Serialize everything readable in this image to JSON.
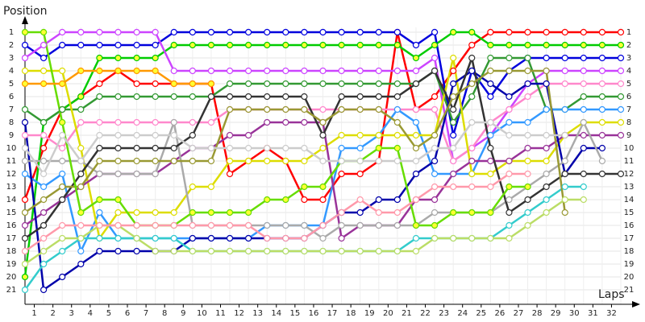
{
  "chart_data": {
    "type": "line",
    "title": "Position",
    "x_label": "Laps",
    "x": [
      0,
      1,
      2,
      3,
      4,
      5,
      6,
      7,
      8,
      9,
      10,
      11,
      12,
      13,
      14,
      15,
      16,
      17,
      18,
      19,
      20,
      21,
      22,
      23,
      24,
      25,
      26,
      27,
      28,
      29,
      30,
      31,
      32
    ],
    "xlim": [
      0,
      32
    ],
    "xticks": [
      1,
      2,
      3,
      4,
      5,
      6,
      7,
      8,
      9,
      10,
      11,
      12,
      13,
      14,
      15,
      16,
      17,
      18,
      19,
      20,
      21,
      22,
      23,
      24,
      25,
      26,
      27,
      28,
      29,
      30,
      31,
      32
    ],
    "ylim": [
      1,
      21
    ],
    "y_reversed": true,
    "yticks": [
      1,
      2,
      3,
      4,
      5,
      6,
      7,
      8,
      9,
      10,
      11,
      12,
      13,
      14,
      15,
      16,
      17,
      18,
      19,
      20,
      21
    ],
    "grid": true,
    "series": [
      {
        "color": "#ff0000",
        "marker_fill": "#ffffff",
        "values": [
          14,
          10,
          7,
          6,
          5,
          4,
          5,
          5,
          5,
          5,
          5,
          12,
          11,
          10,
          11,
          14,
          14,
          12,
          12,
          11,
          1,
          7,
          6,
          4,
          2,
          1,
          1,
          1,
          1,
          1,
          1,
          1,
          1
        ]
      },
      {
        "color": "#00cc00",
        "marker_fill": "#ffff33",
        "values": [
          20,
          8,
          7,
          6,
          3,
          3,
          3,
          3,
          2,
          2,
          2,
          2,
          2,
          2,
          2,
          2,
          2,
          2,
          2,
          2,
          2,
          3,
          2,
          1,
          1,
          2,
          2,
          2,
          2,
          2,
          2,
          2,
          2
        ]
      },
      {
        "color": "#0000dd",
        "marker_fill": "#ffffff",
        "values": [
          2,
          3,
          2,
          2,
          2,
          2,
          2,
          2,
          1,
          1,
          1,
          1,
          1,
          1,
          1,
          1,
          1,
          1,
          1,
          1,
          1,
          2,
          1,
          9,
          4,
          6,
          4,
          3,
          3,
          3,
          3,
          3,
          3
        ]
      },
      {
        "color": "#cc44ff",
        "marker_fill": "#ffffff",
        "values": [
          3,
          2,
          1,
          1,
          1,
          1,
          1,
          1,
          4,
          4,
          4,
          4,
          4,
          4,
          4,
          4,
          4,
          4,
          4,
          4,
          4,
          4,
          3,
          11,
          10,
          9,
          7,
          5,
          4,
          4,
          4,
          4,
          4
        ]
      },
      {
        "color": "#ff88cc",
        "marker_fill": "#ffffff",
        "values": [
          9,
          9,
          10,
          8,
          8,
          8,
          8,
          8,
          8,
          8,
          8,
          7,
          7,
          7,
          7,
          7,
          7,
          7,
          7,
          7,
          7,
          7,
          7,
          11,
          10,
          8,
          7,
          6,
          5,
          5,
          5,
          5,
          5
        ]
      },
      {
        "color": "#339933",
        "marker_fill": "#ffffff",
        "values": [
          7,
          8,
          7,
          7,
          6,
          6,
          6,
          6,
          6,
          6,
          6,
          5,
          5,
          5,
          5,
          5,
          5,
          5,
          5,
          5,
          5,
          5,
          4,
          8,
          6,
          3,
          3,
          3,
          7,
          7,
          6,
          6,
          6
        ]
      },
      {
        "color": "#3399ff",
        "marker_fill": "#ffffff",
        "values": [
          12,
          13,
          12,
          18,
          15,
          17,
          17,
          17,
          17,
          17,
          17,
          17,
          17,
          16,
          16,
          16,
          16,
          10,
          10,
          9,
          7,
          8,
          12,
          12,
          12,
          9,
          8,
          8,
          7,
          7,
          7,
          7,
          7
        ]
      },
      {
        "color": "#dddd00",
        "marker_fill": "#ffffff",
        "values": [
          4,
          4,
          4,
          10,
          17,
          15,
          15,
          15,
          15,
          13,
          13,
          11,
          11,
          11,
          11,
          11,
          10,
          9,
          9,
          9,
          9,
          9,
          9,
          3,
          12,
          12,
          11,
          11,
          11,
          9,
          8,
          8,
          8
        ]
      },
      {
        "color": "#993399",
        "marker_fill": "#ffffff",
        "values": [
          16,
          15,
          14,
          13,
          12,
          12,
          12,
          12,
          11,
          10,
          10,
          9,
          9,
          8,
          8,
          8,
          8,
          17,
          16,
          16,
          16,
          14,
          14,
          12,
          11,
          11,
          11,
          10,
          10,
          9,
          9,
          9,
          9
        ]
      },
      {
        "color": "#0000aa",
        "marker_fill": "#ffffff",
        "values": [
          8,
          21,
          20,
          19,
          18,
          18,
          18,
          18,
          18,
          17,
          17,
          17,
          17,
          17,
          17,
          17,
          16,
          15,
          15,
          14,
          14,
          12,
          11,
          5,
          4,
          5,
          6,
          5,
          5,
          12,
          10,
          10,
          null
        ]
      },
      {
        "color": "#aaaaaa",
        "marker_fill": "#ffffff",
        "values": [
          11,
          11,
          11,
          11,
          12,
          12,
          12,
          12,
          8,
          16,
          16,
          16,
          16,
          16,
          16,
          16,
          17,
          16,
          16,
          16,
          16,
          16,
          15,
          15,
          15,
          15,
          14,
          13,
          12,
          11,
          8,
          11,
          null
        ]
      },
      {
        "color": "#333333",
        "marker_fill": "#ffffff",
        "values": [
          17,
          16,
          14,
          12,
          10,
          10,
          10,
          10,
          10,
          9,
          6,
          6,
          6,
          6,
          6,
          6,
          9,
          6,
          6,
          6,
          6,
          5,
          4,
          7,
          3,
          10,
          15,
          14,
          13,
          12,
          12,
          12,
          12
        ]
      },
      {
        "color": "#33cccc",
        "marker_fill": "#ffffff",
        "values": [
          21,
          19,
          18,
          17,
          17,
          17,
          17,
          17,
          17,
          18,
          18,
          18,
          18,
          18,
          18,
          18,
          18,
          18,
          18,
          18,
          18,
          17,
          17,
          17,
          17,
          17,
          16,
          15,
          14,
          13,
          13,
          null,
          null
        ]
      },
      {
        "color": "#bbdd66",
        "marker_fill": "#ffffff",
        "values": [
          19,
          18,
          17,
          17,
          16,
          16,
          17,
          18,
          18,
          18,
          18,
          18,
          18,
          18,
          18,
          18,
          18,
          18,
          18,
          18,
          18,
          18,
          17,
          17,
          17,
          17,
          17,
          16,
          15,
          14,
          14,
          null,
          null
        ]
      },
      {
        "color": "#999933",
        "marker_fill": "#ffffff",
        "values": [
          15,
          14,
          13,
          13,
          11,
          11,
          11,
          11,
          11,
          11,
          11,
          7,
          7,
          7,
          7,
          7,
          8,
          7,
          7,
          7,
          8,
          10,
          9,
          6,
          5,
          4,
          4,
          4,
          4,
          15,
          null,
          null,
          null
        ]
      },
      {
        "color": "#66dd00",
        "marker_fill": "#ffff33",
        "values": [
          1,
          1,
          8,
          15,
          14,
          14,
          16,
          16,
          16,
          15,
          15,
          15,
          15,
          14,
          14,
          13,
          13,
          11,
          11,
          10,
          10,
          16,
          16,
          15,
          15,
          15,
          13,
          13,
          null,
          null,
          null,
          null,
          null
        ]
      },
      {
        "color": "#ff9900",
        "marker_fill": "#ffff33",
        "values": [
          5,
          5,
          5,
          4,
          4,
          4,
          4,
          4,
          5,
          5,
          5,
          null,
          null,
          null,
          null,
          null,
          null,
          null,
          null,
          null,
          null,
          null,
          null,
          null,
          null,
          null,
          null,
          null,
          null,
          null,
          null,
          null,
          null
        ]
      },
      {
        "color": "#cccccc",
        "marker_fill": "#ffffff",
        "values": [
          10,
          12,
          9,
          11,
          9,
          9,
          9,
          9,
          9,
          10,
          10,
          10,
          10,
          10,
          10,
          10,
          11,
          11,
          11,
          11,
          11,
          11,
          10,
          10,
          8,
          8,
          9,
          9,
          9,
          9,
          null,
          null,
          null
        ]
      },
      {
        "color": "#ff99aa",
        "marker_fill": "#ffffff",
        "values": [
          18,
          17,
          16,
          16,
          16,
          16,
          16,
          16,
          16,
          16,
          16,
          16,
          16,
          17,
          17,
          17,
          16,
          15,
          14,
          15,
          15,
          14,
          13,
          13,
          13,
          13,
          12,
          12,
          null,
          null,
          null,
          null,
          null
        ]
      }
    ]
  }
}
